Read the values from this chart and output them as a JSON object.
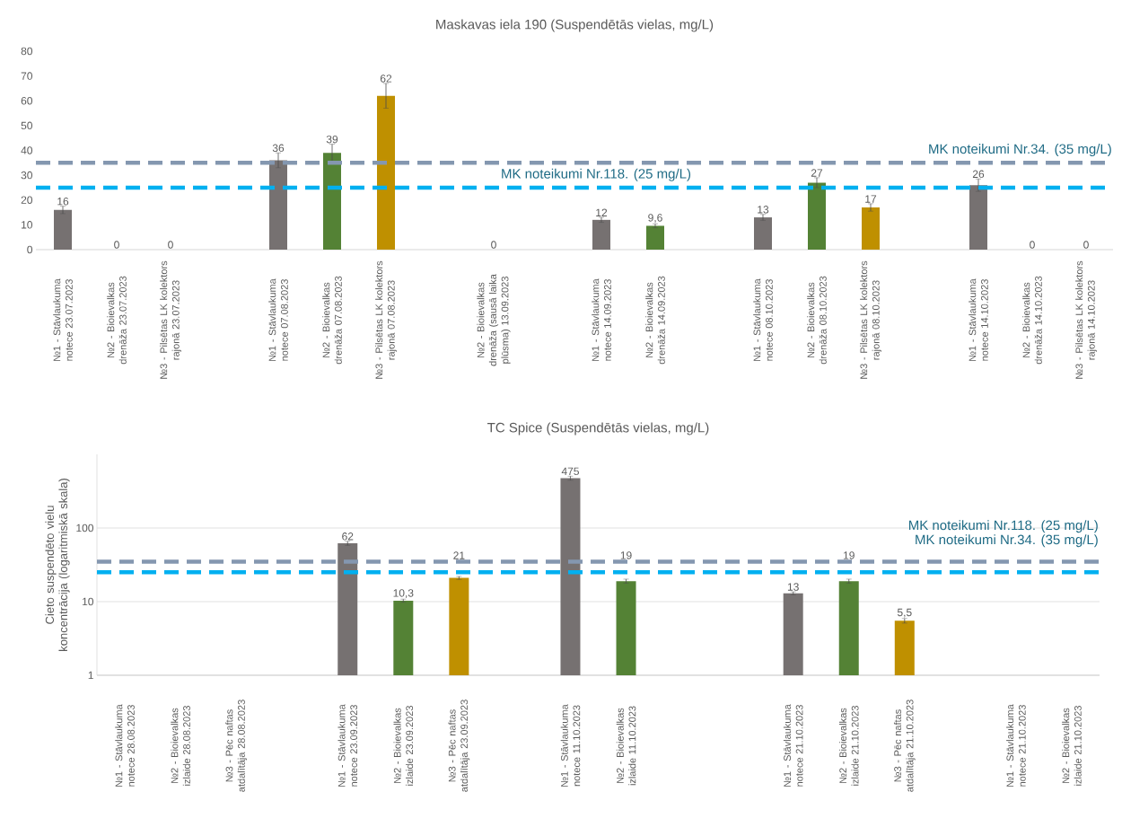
{
  "chart_data": [
    {
      "type": "bar",
      "title": "Maskavas iela 190 (Suspendētās vielas, mg/L)",
      "categories": [
        "№1 - Stāvlaukuma notece 23.07.2023",
        "№2 - Bioievalkas drenāža 23.07.2023",
        "№3 - Pilsētas LK kolektors rajonā 23.07.2023",
        null,
        "№1 - Stāvlaukuma notece 07.08.2023",
        "№2 - Bioievalkas drenāža 07.08.2023",
        "№3 - Pilsētas LK kolektors rajonā 07.08.2023",
        null,
        "№2 - Bioievalkas drenāža (sausā laika plūsma) 13.09.2023",
        null,
        "№1 - Stāvlaukuma notece 14.09.2023",
        "№2 - Bioievalkas drenāža 14.09.2023",
        null,
        "№1 - Stāvlaukuma notece 08.10.2023",
        "№2 - Bioievalkas drenāža 08.10.2023",
        "№3 - Pilsētas LK kolektors rajonā 08.10.2023",
        null,
        "№1 - Stāvlaukuma notece 14.10.2023",
        "№2 - Bioievalkas drenāža 14.10.2023",
        "№3 - Pilsētas LK kolektors rajonā 14.10.2023"
      ],
      "values": [
        16,
        0,
        0,
        null,
        36,
        39,
        62,
        null,
        0,
        null,
        12,
        9.6,
        null,
        13,
        27,
        17,
        null,
        26,
        0,
        0
      ],
      "colors": [
        "#767171",
        "#548235",
        "#bf9000",
        null,
        "#767171",
        "#548235",
        "#bf9000",
        null,
        "#548235",
        null,
        "#767171",
        "#548235",
        null,
        "#767171",
        "#548235",
        "#bf9000",
        null,
        "#767171",
        "#548235",
        "#bf9000"
      ],
      "errors": [
        1.5,
        null,
        null,
        null,
        3,
        3.5,
        5,
        null,
        null,
        null,
        1,
        0.8,
        null,
        1.2,
        2,
        1.5,
        null,
        2.5,
        null,
        null
      ],
      "value_labels": [
        "16",
        "0",
        "0",
        null,
        "36",
        "39",
        "62",
        null,
        "0",
        null,
        "12",
        "9,6",
        null,
        "13",
        "27",
        "17",
        null,
        "26",
        "0",
        "0"
      ],
      "ylim": [
        0,
        80
      ],
      "yticks": [
        0,
        10,
        20,
        30,
        40,
        50,
        60,
        70,
        80
      ],
      "ref_lines": [
        {
          "axis": "y",
          "value": 35,
          "label": "MK noteikumi Nr.34. (35 mg/L)",
          "color": "#8497b0",
          "line_style": "dashed"
        },
        {
          "axis": "y",
          "value": 25,
          "label": "MK noteikumi Nr.118. (25 mg/L)",
          "color": "#00b0f0",
          "line_style": "dashed"
        }
      ],
      "grid": false
    },
    {
      "type": "bar",
      "title": "TC Spice (Suspendētās vielas, mg/L)",
      "ylabel": "Cieto suspendēto vielu koncentrācija (logaritmiskā skala)",
      "categories": [
        "№1 - Stāvlaukuma notece 28.08.2023",
        "№2 - Bioievalkas izlaide 28.08.2023",
        "№3 - Pēc naftas atdalītāja 28.08.2023",
        null,
        "№1 - Stāvlaukuma notece 23.09.2023",
        "№2 - Bioievalkas izlaide 23.09.2023",
        "№3 - Pēc naftas atdalītāja 23.09.2023",
        null,
        "№1 - Stāvlaukuma notece 11.10.2023",
        "№2 - Bioievalkas izlaide 11.10.2023",
        null,
        null,
        "№1 - Stāvlaukuma notece 21.10.2023",
        "№2 - Bioievalkas izlaide 21.10.2023",
        "№3 - Pēc naftas atdalītāja 21.10.2023",
        null,
        "№1 - Stāvlaukuma notece 21.10.2023",
        "№2 - Bioievalkas izlaide 21.10.2023"
      ],
      "values": [
        null,
        null,
        null,
        null,
        62,
        10.3,
        21,
        null,
        475,
        19,
        null,
        null,
        13,
        19,
        5.5,
        null,
        null,
        null
      ],
      "colors": [
        null,
        null,
        null,
        null,
        "#767171",
        "#548235",
        "#bf9000",
        null,
        "#767171",
        "#548235",
        null,
        null,
        "#767171",
        "#548235",
        "#bf9000",
        null,
        null,
        null
      ],
      "errors": [
        null,
        null,
        null,
        null,
        4,
        0.5,
        1,
        null,
        30,
        1.2,
        null,
        null,
        0.6,
        1.2,
        0.4,
        null,
        null,
        null
      ],
      "value_labels": [
        null,
        null,
        null,
        null,
        "62",
        "10,3",
        "21",
        null,
        "475",
        "19",
        null,
        null,
        "13",
        "19",
        "5,5",
        null,
        null,
        null
      ],
      "ylim": [
        1,
        1000
      ],
      "yticks": [
        1,
        10,
        100
      ],
      "log": true,
      "ref_lines": [
        {
          "axis": "y",
          "value": 25,
          "label": "MK noteikumi Nr.118. (25 mg/L)",
          "color": "#00b0f0",
          "line_style": "dashed"
        },
        {
          "axis": "y",
          "value": 35,
          "label": "MK noteikumi Nr.34. (35 mg/L)",
          "color": "#8497b0",
          "line_style": "dashed"
        }
      ],
      "grid": "y"
    }
  ]
}
